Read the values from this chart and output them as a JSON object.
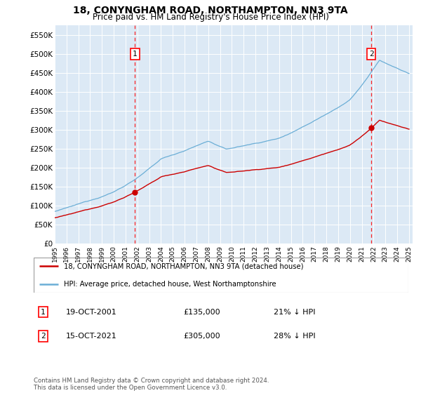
{
  "title": "18, CONYNGHAM ROAD, NORTHAMPTON, NN3 9TA",
  "subtitle": "Price paid vs. HM Land Registry's House Price Index (HPI)",
  "ylim": [
    0,
    575000
  ],
  "yticks": [
    0,
    50000,
    100000,
    150000,
    200000,
    250000,
    300000,
    350000,
    400000,
    450000,
    500000,
    550000
  ],
  "ytick_labels": [
    "£0",
    "£50K",
    "£100K",
    "£150K",
    "£200K",
    "£250K",
    "£300K",
    "£350K",
    "£400K",
    "£450K",
    "£500K",
    "£550K"
  ],
  "bg_color": "#dce9f5",
  "grid_color": "#ffffff",
  "hpi_color": "#6baed6",
  "price_color": "#cc0000",
  "sale1_year": 2001.8,
  "sale1_price": 135000,
  "sale2_year": 2021.8,
  "sale2_price": 305000,
  "legend_line1": "18, CONYNGHAM ROAD, NORTHAMPTON, NN3 9TA (detached house)",
  "legend_line2": "HPI: Average price, detached house, West Northamptonshire",
  "annotation1_date": "19-OCT-2001",
  "annotation1_price": "£135,000",
  "annotation1_hpi": "21% ↓ HPI",
  "annotation2_date": "15-OCT-2021",
  "annotation2_price": "£305,000",
  "annotation2_hpi": "28% ↓ HPI",
  "footer": "Contains HM Land Registry data © Crown copyright and database right 2024.\nThis data is licensed under the Open Government Licence v3.0."
}
